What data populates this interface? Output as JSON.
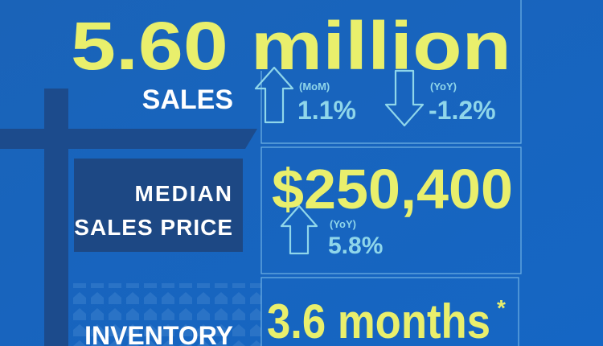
{
  "sales": {
    "value": "5.60 million",
    "label": "SALES",
    "mom": {
      "period": "(MoM)",
      "change": "1.1%"
    },
    "yoy": {
      "period": "(YoY)",
      "change": "-1.2%"
    }
  },
  "price": {
    "label_line1": "MEDIAN",
    "label_line2": "SALES PRICE",
    "value": "$250,400",
    "yoy": {
      "period": "(YoY)",
      "change": "5.8%"
    }
  },
  "inventory": {
    "label": "INVENTORY",
    "value": "3.6 months",
    "footnote": "*"
  }
}
